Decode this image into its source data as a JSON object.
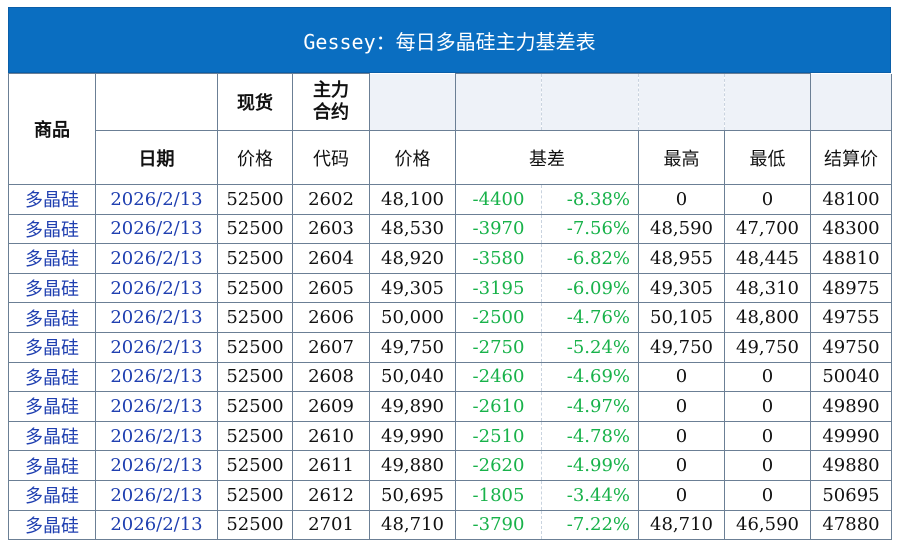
{
  "title": "Gessey：每日多晶硅主力基差表",
  "header": {
    "product": "商品",
    "spot": "现货",
    "main_contract": "主力\n合约",
    "date": "日期",
    "price": "价格",
    "code": "代码",
    "contract_price": "价格",
    "basis": "基差",
    "high": "最高",
    "low": "最低",
    "settle": "结算价"
  },
  "rows": [
    {
      "product": "多晶硅",
      "date": "2026/2/13",
      "spot": "52500",
      "code": "2602",
      "price": "48,100",
      "basis": "-4400",
      "basis_pct": "-8.38%",
      "high": "0",
      "low": "0",
      "settle": "48100"
    },
    {
      "product": "多晶硅",
      "date": "2026/2/13",
      "spot": "52500",
      "code": "2603",
      "price": "48,530",
      "basis": "-3970",
      "basis_pct": "-7.56%",
      "high": "48,590",
      "low": "47,700",
      "settle": "48300"
    },
    {
      "product": "多晶硅",
      "date": "2026/2/13",
      "spot": "52500",
      "code": "2604",
      "price": "48,920",
      "basis": "-3580",
      "basis_pct": "-6.82%",
      "high": "48,955",
      "low": "48,445",
      "settle": "48810"
    },
    {
      "product": "多晶硅",
      "date": "2026/2/13",
      "spot": "52500",
      "code": "2605",
      "price": "49,305",
      "basis": "-3195",
      "basis_pct": "-6.09%",
      "high": "49,305",
      "low": "48,310",
      "settle": "48975"
    },
    {
      "product": "多晶硅",
      "date": "2026/2/13",
      "spot": "52500",
      "code": "2606",
      "price": "50,000",
      "basis": "-2500",
      "basis_pct": "-4.76%",
      "high": "50,105",
      "low": "48,800",
      "settle": "49755"
    },
    {
      "product": "多晶硅",
      "date": "2026/2/13",
      "spot": "52500",
      "code": "2607",
      "price": "49,750",
      "basis": "-2750",
      "basis_pct": "-5.24%",
      "high": "49,750",
      "low": "49,750",
      "settle": "49750"
    },
    {
      "product": "多晶硅",
      "date": "2026/2/13",
      "spot": "52500",
      "code": "2608",
      "price": "50,040",
      "basis": "-2460",
      "basis_pct": "-4.69%",
      "high": "0",
      "low": "0",
      "settle": "50040"
    },
    {
      "product": "多晶硅",
      "date": "2026/2/13",
      "spot": "52500",
      "code": "2609",
      "price": "49,890",
      "basis": "-2610",
      "basis_pct": "-4.97%",
      "high": "0",
      "low": "0",
      "settle": "49890"
    },
    {
      "product": "多晶硅",
      "date": "2026/2/13",
      "spot": "52500",
      "code": "2610",
      "price": "49,990",
      "basis": "-2510",
      "basis_pct": "-4.78%",
      "high": "0",
      "low": "0",
      "settle": "49990"
    },
    {
      "product": "多晶硅",
      "date": "2026/2/13",
      "spot": "52500",
      "code": "2611",
      "price": "49,880",
      "basis": "-2620",
      "basis_pct": "-4.99%",
      "high": "0",
      "low": "0",
      "settle": "49880"
    },
    {
      "product": "多晶硅",
      "date": "2026/2/13",
      "spot": "52500",
      "code": "2612",
      "price": "50,695",
      "basis": "-1805",
      "basis_pct": "-3.44%",
      "high": "0",
      "low": "0",
      "settle": "50695"
    },
    {
      "product": "多晶硅",
      "date": "2026/2/13",
      "spot": "52500",
      "code": "2701",
      "price": "48,710",
      "basis": "-3790",
      "basis_pct": "-7.22%",
      "high": "48,710",
      "low": "46,590",
      "settle": "47880"
    }
  ],
  "colors": {
    "title_bg": "#0a6ec1",
    "basis_green": "#18b24a",
    "product_blue": "#1f3fb0"
  }
}
